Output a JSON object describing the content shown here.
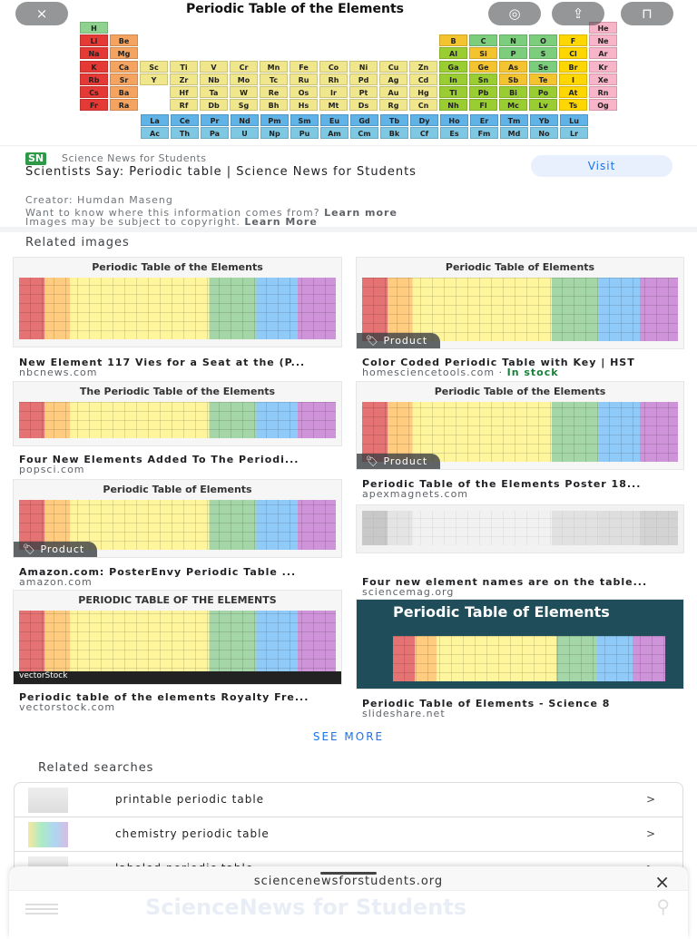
{
  "hero": {
    "title": "Periodic Table of the Elements",
    "rows": [
      [
        "H",
        "",
        "",
        "",
        "",
        "",
        "",
        "",
        "",
        "",
        "",
        "",
        "",
        "",
        "",
        "",
        "",
        "He"
      ],
      [
        "Li",
        "Be",
        "",
        "",
        "",
        "",
        "",
        "",
        "",
        "",
        "",
        "",
        "B",
        "C",
        "N",
        "O",
        "F",
        "Ne"
      ],
      [
        "Na",
        "Mg",
        "",
        "",
        "",
        "",
        "",
        "",
        "",
        "",
        "",
        "",
        "Al",
        "Si",
        "P",
        "S",
        "Cl",
        "Ar"
      ],
      [
        "K",
        "Ca",
        "Sc",
        "Ti",
        "V",
        "Cr",
        "Mn",
        "Fe",
        "Co",
        "Ni",
        "Cu",
        "Zn",
        "Ga",
        "Ge",
        "As",
        "Se",
        "Br",
        "Kr"
      ],
      [
        "Rb",
        "Sr",
        "Y",
        "Zr",
        "Nb",
        "Mo",
        "Tc",
        "Ru",
        "Rh",
        "Pd",
        "Ag",
        "Cd",
        "In",
        "Sn",
        "Sb",
        "Te",
        "I",
        "Xe"
      ],
      [
        "Cs",
        "Ba",
        "",
        "Hf",
        "Ta",
        "W",
        "Re",
        "Os",
        "Ir",
        "Pt",
        "Au",
        "Hg",
        "Tl",
        "Pb",
        "Bi",
        "Po",
        "At",
        "Rn"
      ],
      [
        "Fr",
        "Ra",
        "",
        "Rf",
        "Db",
        "Sg",
        "Bh",
        "Hs",
        "Mt",
        "Ds",
        "Rg",
        "Cn",
        "Nh",
        "Fl",
        "Mc",
        "Lv",
        "Ts",
        "Og"
      ]
    ],
    "lanthanides": [
      "La",
      "Ce",
      "Pr",
      "Nd",
      "Pm",
      "Sm",
      "Eu",
      "Gd",
      "Tb",
      "Dy",
      "Ho",
      "Er",
      "Tm",
      "Yb",
      "Lu"
    ],
    "actinides": [
      "Ac",
      "Th",
      "Pa",
      "U",
      "Np",
      "Pu",
      "Am",
      "Cm",
      "Bk",
      "Cf",
      "Es",
      "Fm",
      "Md",
      "No",
      "Lr"
    ],
    "colors": {
      "alkali": "#e53935",
      "alkaline": "#f4a460",
      "transition": "#f0e68c",
      "post": "#9acd32",
      "metalloid": "#f4c430",
      "nonmetal": "#7ccd7c",
      "halogen": "#ffd700",
      "noble": "#f8b4c8",
      "lanthanide": "#5fb3e6",
      "actinide": "#7ec8e3",
      "hydrogen": "#8fd18f"
    }
  },
  "overlay": {
    "close_icon": "×",
    "lens_icon": "◎",
    "share_icon": "⇪",
    "bookmark_icon": "⊓"
  },
  "info": {
    "source_badge": "SN",
    "source": "Science News for Students",
    "title": "Scientists Say: Periodic table | Science News for Students",
    "visit": "Visit",
    "creator": "Creator: Humdan Maseng",
    "info_text": "Want to know where this information comes from?",
    "info_link": "Learn more",
    "copyright_text": "Images may be subject to copyright.",
    "copyright_link": "Learn More"
  },
  "related_images": {
    "heading": "Related images",
    "items": [
      {
        "thumb_title": "Periodic Table of the Elements",
        "caption": "New Element 117 Vies for a Seat at the (P...",
        "domain": "nbcnews.com"
      },
      {
        "thumb_title": "Periodic Table of Elements",
        "caption": "Color Coded Periodic Table with Key | HST",
        "domain": "homesciencetools.com",
        "stock": "In stock",
        "badge": "Product"
      },
      {
        "thumb_title": "The Periodic Table of the Elements",
        "caption": "Four New Elements Added To The Periodi...",
        "domain": "popsci.com"
      },
      {
        "thumb_title": "Periodic Table of the Elements",
        "caption": "Periodic Table of the Elements Poster 18...",
        "domain": "apexmagnets.com",
        "badge": "Product"
      },
      {
        "thumb_title": "Periodic Table of Elements",
        "caption": "Amazon.com: PosterEnvy Periodic Table ...",
        "domain": "amazon.com",
        "badge": "Product"
      },
      {
        "thumb_title": "",
        "caption": "Four new element names are on the table...",
        "domain": "sciencemag.org"
      },
      {
        "thumb_title": "PERIODIC TABLE OF THE ELEMENTS",
        "caption": "Periodic table of the elements Royalty Fre...",
        "domain": "vectorstock.com",
        "watermark": "vectorStock"
      },
      {
        "thumb_title": "Periodic Table of Elements",
        "caption": "Periodic Table of Elements - Science 8",
        "domain": "slideshare.net"
      }
    ],
    "see_more": "SEE MORE"
  },
  "related_searches": {
    "heading": "Related searches",
    "items": [
      {
        "label": "printable periodic table"
      },
      {
        "label": "chemistry periodic table"
      },
      {
        "label": "labeled periodic table"
      }
    ],
    "chevron": ">"
  },
  "sheet": {
    "url": "sciencenewsforstudents.org",
    "close": "×",
    "logo": "ScienceNews for Students",
    "search_icon": "⚲"
  }
}
